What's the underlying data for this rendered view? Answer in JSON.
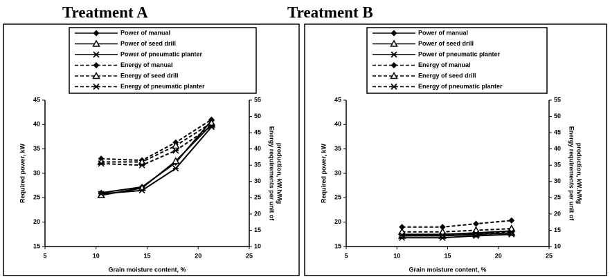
{
  "chart_data": [
    {
      "type": "line",
      "title": "Treatment A",
      "x": [
        10.5,
        14.5,
        17.8,
        21.3
      ],
      "xlabel": "Grain moisture content, %",
      "ylabel": "Required power, kW",
      "y2label": [
        "Energy requirements per unit of",
        "production, kW.h/Mg"
      ],
      "xlim": [
        5,
        25
      ],
      "xticks": [
        5,
        10,
        15,
        20,
        25
      ],
      "ylim": [
        15,
        45
      ],
      "yticks": [
        15,
        20,
        25,
        30,
        35,
        40,
        45
      ],
      "y2lim": [
        10,
        55
      ],
      "y2ticks": [
        10,
        15,
        20,
        25,
        30,
        35,
        40,
        45,
        50,
        55
      ],
      "series": [
        {
          "name": "Power of manual",
          "color": "#000000",
          "marker": "diamond",
          "dash": false,
          "values": [
            26,
            27.2,
            32.2,
            40.8
          ]
        },
        {
          "name": "Power of seed drill",
          "color": "#000000",
          "marker": "triangle",
          "dash": false,
          "values": [
            25.5,
            27,
            32.5,
            40
          ]
        },
        {
          "name": "Power of pneumatic planter",
          "color": "#000000",
          "marker": "star",
          "dash": false,
          "values": [
            25.8,
            26.5,
            31,
            39.5
          ]
        },
        {
          "name": "Energy of manual",
          "color": "#000000",
          "marker": "diamond",
          "dash": true,
          "axis": "y2",
          "values": [
            37,
            36.5,
            42,
            49
          ]
        },
        {
          "name": "Energy of seed drill",
          "color": "#000000",
          "marker": "triangle",
          "dash": true,
          "axis": "y2",
          "values": [
            36,
            36,
            41,
            48
          ]
        },
        {
          "name": "Energy of pneumatic planter",
          "color": "#000000",
          "marker": "star",
          "dash": true,
          "axis": "y2",
          "values": [
            35.5,
            35,
            39.5,
            47
          ]
        }
      ]
    },
    {
      "type": "line",
      "title": "Treatment B",
      "x": [
        10.5,
        14.5,
        17.8,
        21.3
      ],
      "xlabel": "Grain moisture content, %",
      "ylabel": "Required power, kW",
      "y2label": [
        "Energy requirements per unit of",
        "production, kW.h/Mg"
      ],
      "xlim": [
        5,
        25
      ],
      "xticks": [
        5,
        10,
        15,
        20,
        25
      ],
      "ylim": [
        15,
        45
      ],
      "yticks": [
        15,
        20,
        25,
        30,
        35,
        40,
        45
      ],
      "y2lim": [
        10,
        55
      ],
      "y2ticks": [
        10,
        15,
        20,
        25,
        30,
        35,
        40,
        45,
        50,
        55
      ],
      "series": [
        {
          "name": "Power of manual",
          "color": "#000000",
          "marker": "diamond",
          "dash": false,
          "values": [
            17.5,
            17.5,
            17.8,
            18.2
          ]
        },
        {
          "name": "Power of seed drill",
          "color": "#000000",
          "marker": "triangle",
          "dash": false,
          "values": [
            17.2,
            17.2,
            17.5,
            17.8
          ]
        },
        {
          "name": "Power of pneumatic planter",
          "color": "#000000",
          "marker": "star",
          "dash": false,
          "values": [
            16.8,
            16.8,
            17.2,
            17.5
          ]
        },
        {
          "name": "Energy of manual",
          "color": "#000000",
          "marker": "diamond",
          "dash": true,
          "axis": "y2",
          "values": [
            16,
            16,
            17,
            18
          ]
        },
        {
          "name": "Energy of seed drill",
          "color": "#000000",
          "marker": "triangle",
          "dash": true,
          "axis": "y2",
          "values": [
            14.5,
            14.5,
            15,
            15.5
          ]
        },
        {
          "name": "Energy of pneumatic planter",
          "color": "#000000",
          "marker": "star",
          "dash": true,
          "axis": "y2",
          "values": [
            13.5,
            13.5,
            14,
            14.5
          ]
        }
      ]
    }
  ]
}
